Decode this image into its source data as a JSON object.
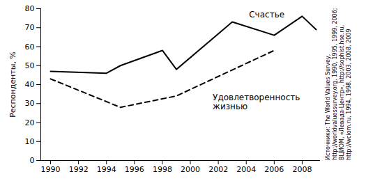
{
  "chart_data": {
    "type": "line",
    "ylabel": "Респонденты, %",
    "xlim": [
      1989.3,
      2009.3
    ],
    "xticks": [
      1990,
      1992,
      1994,
      1996,
      1998,
      2000,
      2002,
      2004,
      2006,
      2008
    ],
    "ylim": [
      0,
      80
    ],
    "yticks": [
      0,
      10,
      20,
      30,
      40,
      50,
      60,
      70,
      80
    ],
    "grid": false,
    "series": [
      {
        "name": "Счастье",
        "color": "#000000",
        "line_style": "solid",
        "x": [
          1990,
          1994,
          1995,
          1998,
          1999,
          2003,
          2006,
          2008,
          2009
        ],
        "values": [
          47,
          46,
          50,
          58,
          48,
          73,
          66,
          76,
          69
        ]
      },
      {
        "name": "Удовлетворенность жизнью",
        "color": "#000000",
        "line_style": "dashed",
        "x": [
          1990,
          1995,
          1999,
          2006
        ],
        "values": [
          43,
          28,
          34,
          58
        ]
      }
    ],
    "source": "Источники: The World Values Survey, http://worldvaluessurvey.org, 1990, 1995, 1999, 2006; ВЦИОМ, «Левада-Центр», http://sophist.hse.ru, http://wciom.ru, 1994, 1998, 2003, 2008, 2009"
  }
}
